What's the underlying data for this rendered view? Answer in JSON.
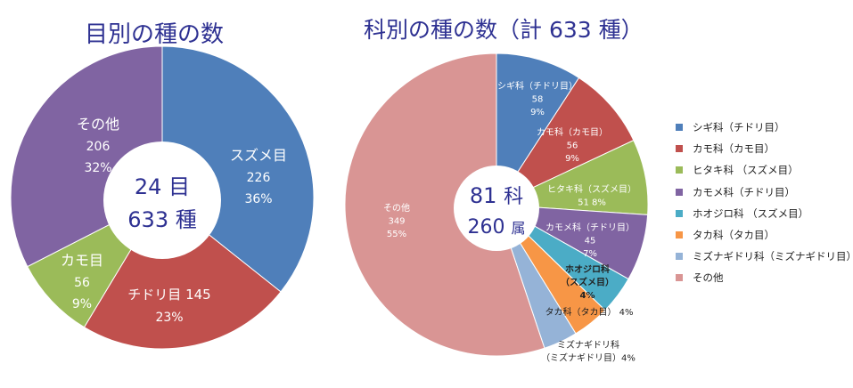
{
  "titles": {
    "left": "目別の種の数",
    "right": "科別の種の数（計 633 種）"
  },
  "chart_data": [
    {
      "type": "pie",
      "title": "目別の種の数",
      "center_text": [
        "24 目",
        "633 種"
      ],
      "slices": [
        {
          "label": "スズメ目",
          "value": 226,
          "percent": "36%",
          "color": "#4F7FBA"
        },
        {
          "label": "チドリ目",
          "value": 145,
          "percent": "23%",
          "color": "#C0504D"
        },
        {
          "label": "カモ目",
          "value": 56,
          "percent": "9%",
          "color": "#9BBB59"
        },
        {
          "label": "その他",
          "value": 206,
          "percent": "32%",
          "color": "#8064A2"
        }
      ]
    },
    {
      "type": "pie",
      "title": "科別の種の数（計 633 種）",
      "center_text": [
        "81 科",
        "260 属"
      ],
      "center_parts": {
        "num1": "81",
        "unit1": "科",
        "num2": "260",
        "unit2": "属"
      },
      "slices": [
        {
          "label": "シギ科（チドリ目）",
          "value": 58,
          "percent": "9%",
          "color": "#4F7FBA"
        },
        {
          "label": "カモ科（カモ目）",
          "value": 56,
          "percent": "9%",
          "color": "#C0504D"
        },
        {
          "label": "ヒタキ科（スズメ目）",
          "value": 51,
          "percent": "8%",
          "color": "#9BBB59"
        },
        {
          "label": "カモメ科（チドリ目）",
          "value": 45,
          "percent": "7%",
          "color": "#8064A2"
        },
        {
          "label": "ホオジロ科（スズメ目）",
          "value": 26,
          "percent": "4%",
          "color": "#4BACC6"
        },
        {
          "label": "タカ科（タカ目）",
          "value": 25,
          "percent": "4%",
          "color": "#F79646"
        },
        {
          "label": "ミズナギドリ科（ミズナギドリ目）",
          "value": 23,
          "percent": "4%",
          "color": "#95B3D7"
        },
        {
          "label": "その他",
          "value": 349,
          "percent": "55%",
          "color": "#D99594"
        }
      ],
      "slice_labels": [
        [
          "シギ科（チドリ目）",
          "58",
          "9%"
        ],
        [
          "カモ科（カモ目）",
          "56",
          "9%"
        ],
        [
          "ヒタキ科（スズメ目）",
          "51",
          "8%"
        ],
        [
          "カモメ科（チドリ目）",
          "45",
          "7%"
        ],
        [
          "ホオジロ科",
          "（スズメ目）",
          "4%"
        ],
        [
          "タカ科（タカ目） 4%"
        ],
        [
          "ミズナギドリ科",
          "（ミズナギドリ目）4%"
        ],
        [
          "その他",
          "349",
          "55%"
        ]
      ],
      "legend": [
        "シギ科（チドリ目）",
        "カモ科（カモ目）",
        "ヒタキ科 （スズメ目）",
        "カモメ科（チドリ目）",
        "ホオジロ科 （スズメ目）",
        "タカ科（タカ目）",
        "ミズナギドリ科（ミズナギドリ目）",
        "その他"
      ]
    }
  ]
}
